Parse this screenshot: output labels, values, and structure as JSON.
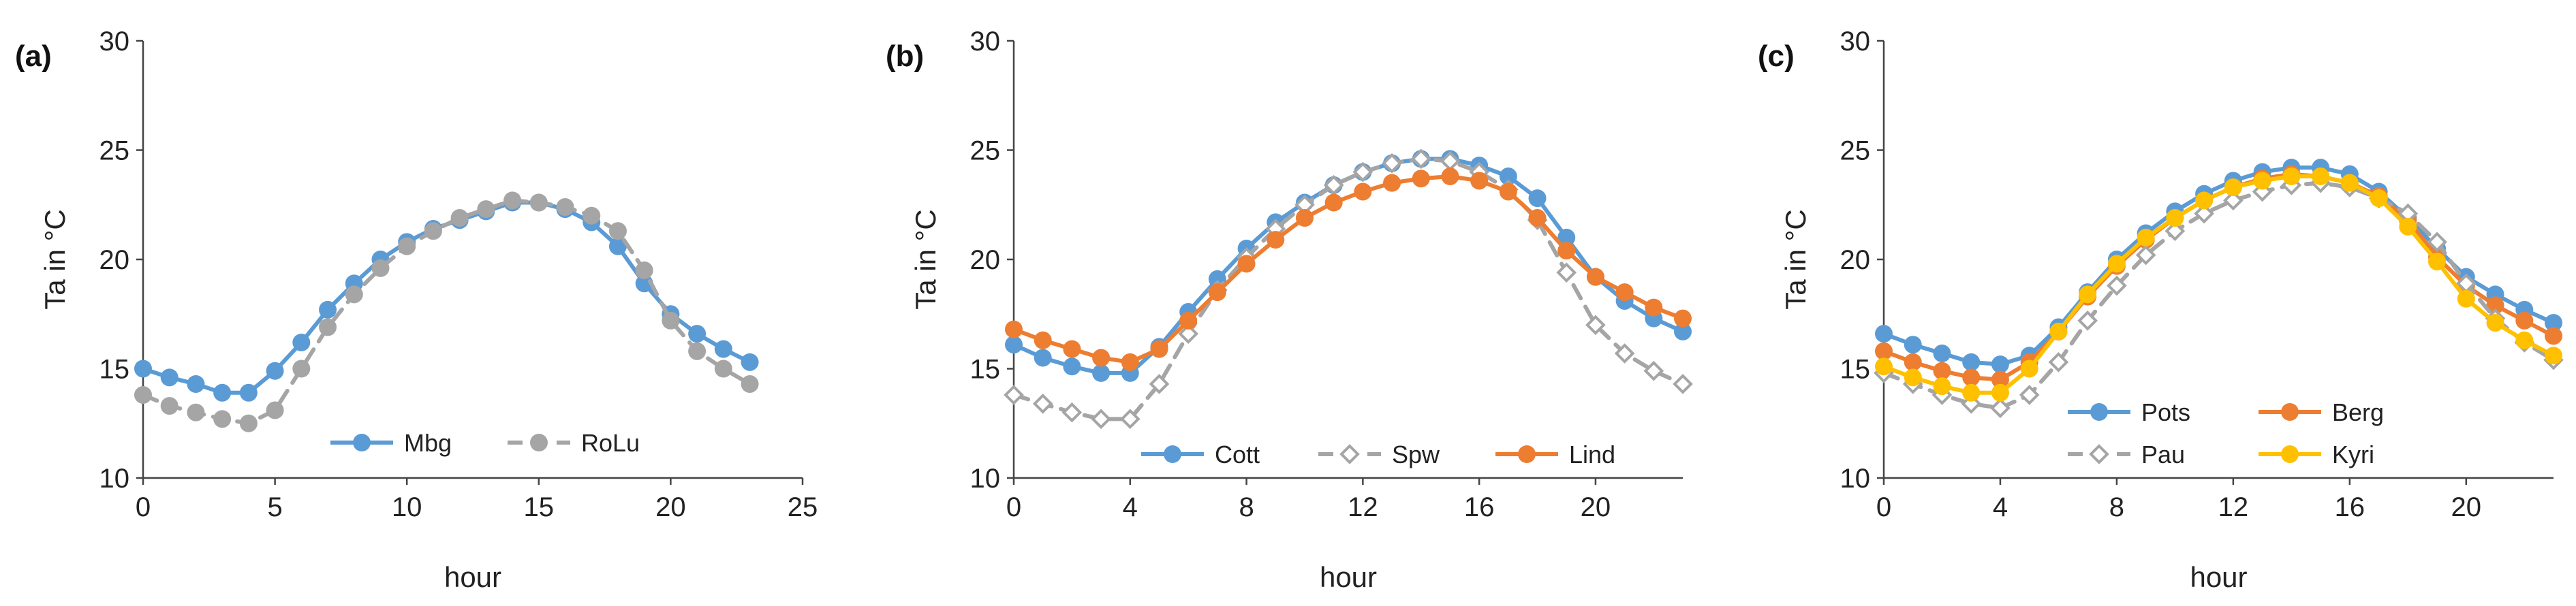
{
  "chart_data": [
    {
      "type": "line",
      "panel_label": "(a)",
      "title": "",
      "xlabel": "hour",
      "ylabel": "Ta in °C",
      "xlim": [
        0,
        25
      ],
      "ylim": [
        10,
        30
      ],
      "xticks": [
        0,
        5,
        10,
        15,
        20,
        25
      ],
      "yticks": [
        10,
        15,
        20,
        25,
        30
      ],
      "grid": false,
      "legend_position": "bottom-center",
      "x": [
        0,
        1,
        2,
        3,
        4,
        5,
        6,
        7,
        8,
        9,
        10,
        11,
        12,
        13,
        14,
        15,
        16,
        17,
        18,
        19,
        20,
        21,
        22,
        23
      ],
      "series": [
        {
          "name": "Mbg",
          "color": "#5B9BD5",
          "dash": "solid",
          "marker": "circle",
          "values": [
            15.0,
            14.6,
            14.3,
            13.9,
            13.9,
            14.9,
            16.2,
            17.7,
            18.9,
            20.0,
            20.8,
            21.4,
            21.8,
            22.2,
            22.6,
            22.6,
            22.3,
            21.7,
            20.6,
            18.9,
            17.5,
            16.6,
            15.9,
            15.3
          ]
        },
        {
          "name": "RoLu",
          "color": "#A5A5A5",
          "dash": "dashed",
          "marker": "circle",
          "values": [
            13.8,
            13.3,
            13.0,
            12.7,
            12.5,
            13.1,
            15.0,
            16.9,
            18.4,
            19.6,
            20.6,
            21.3,
            21.9,
            22.3,
            22.7,
            22.6,
            22.4,
            22.0,
            21.3,
            19.5,
            17.2,
            15.8,
            15.0,
            14.3
          ]
        }
      ]
    },
    {
      "type": "line",
      "panel_label": "(b)",
      "title": "",
      "xlabel": "hour",
      "ylabel": "Ta in °C",
      "xlim": [
        0,
        23
      ],
      "ylim": [
        10,
        30
      ],
      "xticks": [
        0,
        4,
        8,
        12,
        16,
        20
      ],
      "yticks": [
        10,
        15,
        20,
        25,
        30
      ],
      "grid": false,
      "legend_position": "bottom-center",
      "x": [
        0,
        1,
        2,
        3,
        4,
        5,
        6,
        7,
        8,
        9,
        10,
        11,
        12,
        13,
        14,
        15,
        16,
        17,
        18,
        19,
        20,
        21,
        22,
        23
      ],
      "series": [
        {
          "name": "Cott",
          "color": "#5B9BD5",
          "dash": "solid",
          "marker": "circle",
          "values": [
            16.1,
            15.5,
            15.1,
            14.8,
            14.8,
            16.0,
            17.6,
            19.1,
            20.5,
            21.7,
            22.6,
            23.4,
            24.0,
            24.4,
            24.6,
            24.6,
            24.3,
            23.8,
            22.8,
            21.0,
            19.2,
            18.1,
            17.3,
            16.7
          ]
        },
        {
          "name": "Spw",
          "color": "#A5A5A5",
          "dash": "dashed",
          "marker": "diamond-open",
          "values": [
            13.8,
            13.4,
            13.0,
            12.7,
            12.7,
            14.3,
            16.6,
            18.6,
            20.1,
            21.4,
            22.5,
            23.4,
            24.0,
            24.4,
            24.6,
            24.5,
            24.0,
            23.2,
            21.8,
            19.4,
            17.0,
            15.7,
            14.9,
            14.3
          ]
        },
        {
          "name": "Lind",
          "color": "#ED7D31",
          "dash": "solid",
          "marker": "circle",
          "values": [
            16.8,
            16.3,
            15.9,
            15.5,
            15.3,
            15.9,
            17.2,
            18.5,
            19.8,
            20.9,
            21.9,
            22.6,
            23.1,
            23.5,
            23.7,
            23.8,
            23.6,
            23.1,
            21.9,
            20.4,
            19.2,
            18.5,
            17.8,
            17.3
          ]
        }
      ]
    },
    {
      "type": "line",
      "panel_label": "(c)",
      "title": "",
      "xlabel": "hour",
      "ylabel": "Ta in °C",
      "xlim": [
        0,
        23
      ],
      "ylim": [
        10,
        30
      ],
      "xticks": [
        0,
        4,
        8,
        12,
        16,
        20
      ],
      "yticks": [
        10,
        15,
        20,
        25,
        30
      ],
      "grid": false,
      "legend_position": "bottom-center",
      "x": [
        0,
        1,
        2,
        3,
        4,
        5,
        6,
        7,
        8,
        9,
        10,
        11,
        12,
        13,
        14,
        15,
        16,
        17,
        18,
        19,
        20,
        21,
        22,
        23
      ],
      "series": [
        {
          "name": "Pots",
          "color": "#5B9BD5",
          "dash": "solid",
          "marker": "circle",
          "values": [
            16.6,
            16.1,
            15.7,
            15.3,
            15.2,
            15.6,
            16.9,
            18.5,
            20.0,
            21.2,
            22.2,
            23.0,
            23.6,
            24.0,
            24.2,
            24.2,
            23.9,
            23.1,
            21.9,
            20.5,
            19.2,
            18.4,
            17.7,
            17.1
          ]
        },
        {
          "name": "Berg",
          "color": "#ED7D31",
          "dash": "solid",
          "marker": "circle",
          "values": [
            15.8,
            15.3,
            14.9,
            14.6,
            14.5,
            15.3,
            16.7,
            18.3,
            19.7,
            20.9,
            21.9,
            22.7,
            23.3,
            23.7,
            23.9,
            23.8,
            23.5,
            22.9,
            21.8,
            20.1,
            18.8,
            17.9,
            17.2,
            16.5
          ]
        },
        {
          "name": "Pau",
          "color": "#A5A5A5",
          "dash": "dashed",
          "marker": "diamond-open",
          "values": [
            14.8,
            14.3,
            13.8,
            13.4,
            13.2,
            13.8,
            15.3,
            17.2,
            18.8,
            20.2,
            21.3,
            22.1,
            22.7,
            23.1,
            23.4,
            23.5,
            23.3,
            22.8,
            22.1,
            20.8,
            18.9,
            17.3,
            16.2,
            15.4
          ]
        },
        {
          "name": "Kyri",
          "color": "#FFC000",
          "dash": "solid",
          "marker": "circle",
          "values": [
            15.1,
            14.6,
            14.2,
            13.9,
            13.9,
            15.0,
            16.7,
            18.4,
            19.8,
            21.0,
            21.9,
            22.7,
            23.3,
            23.6,
            23.8,
            23.8,
            23.5,
            22.8,
            21.5,
            19.9,
            18.2,
            17.1,
            16.3,
            15.6
          ]
        }
      ]
    }
  ]
}
